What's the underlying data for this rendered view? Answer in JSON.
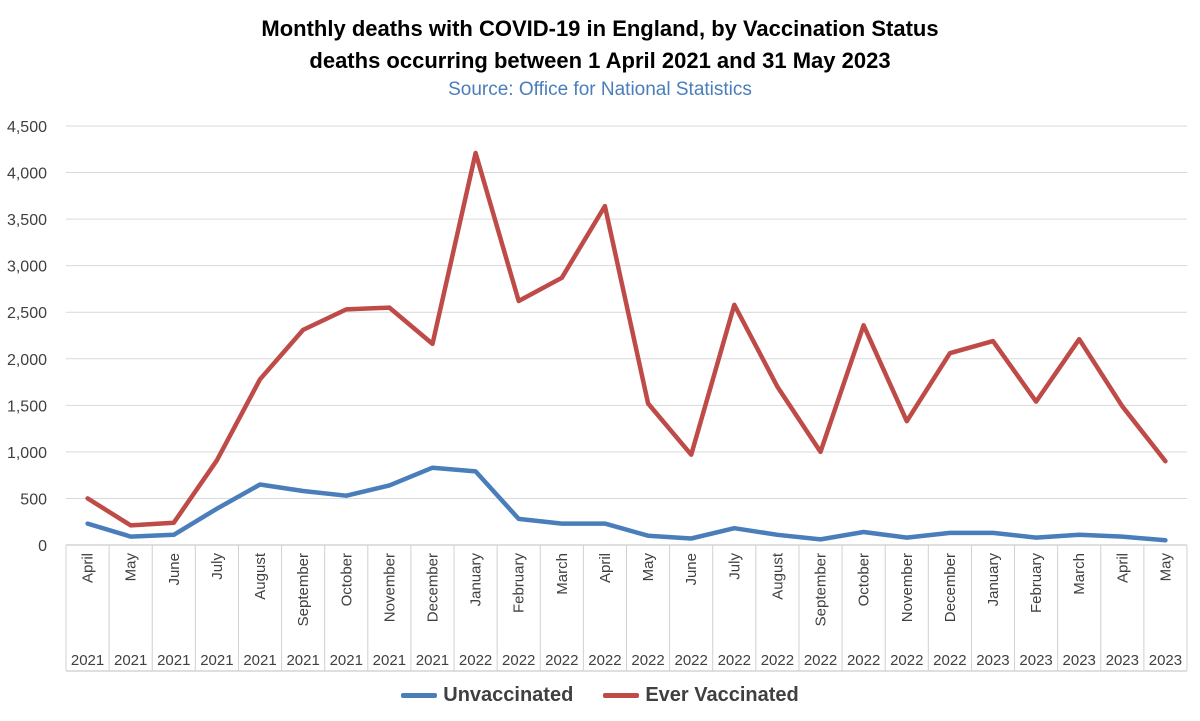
{
  "chart_data": {
    "type": "line",
    "title": "Monthly deaths with COVID-19 in England, by Vaccination Status",
    "subtitle": "deaths occurring between 1 April 2021 and 31 May 2023",
    "source": "Source: Office for National Statistics",
    "months": [
      "April",
      "May",
      "June",
      "July",
      "August",
      "September",
      "October",
      "November",
      "December",
      "January",
      "February",
      "March",
      "April",
      "May",
      "June",
      "July",
      "August",
      "September",
      "October",
      "November",
      "December",
      "January",
      "February",
      "March",
      "April",
      "May"
    ],
    "years": [
      "2021",
      "2021",
      "2021",
      "2021",
      "2021",
      "2021",
      "2021",
      "2021",
      "2021",
      "2022",
      "2022",
      "2022",
      "2022",
      "2022",
      "2022",
      "2022",
      "2022",
      "2022",
      "2022",
      "2022",
      "2022",
      "2023",
      "2023",
      "2023",
      "2023",
      "2023"
    ],
    "ylim": [
      0,
      4500
    ],
    "yticks": [
      "0",
      "500",
      "1,000",
      "1,500",
      "2,000",
      "2,500",
      "3,000",
      "3,500",
      "4,000",
      "4,500"
    ],
    "series": [
      {
        "name": "Unvaccinated",
        "color": "#4a7ebb",
        "values": [
          230,
          90,
          110,
          390,
          650,
          580,
          530,
          640,
          830,
          790,
          280,
          230,
          230,
          100,
          70,
          180,
          110,
          60,
          140,
          80,
          130,
          130,
          80,
          110,
          90,
          50
        ]
      },
      {
        "name": "Ever Vaccinated",
        "color": "#be4b48",
        "values": [
          500,
          210,
          240,
          910,
          1780,
          2310,
          2530,
          2550,
          2160,
          4210,
          2620,
          2870,
          3640,
          1520,
          970,
          2580,
          1700,
          1000,
          2360,
          1330,
          2060,
          2190,
          1540,
          2210,
          1490,
          900
        ]
      }
    ],
    "legend_position": "bottom",
    "grid": true
  }
}
